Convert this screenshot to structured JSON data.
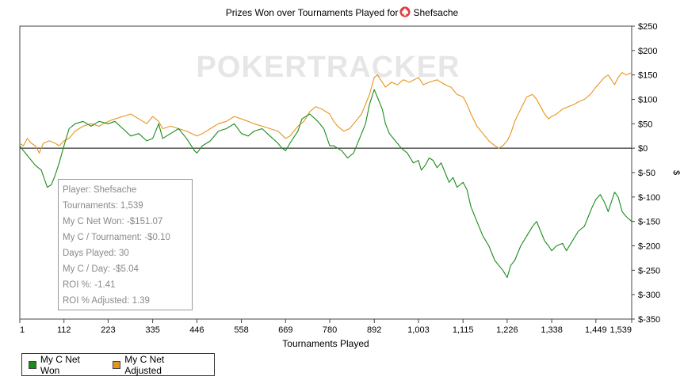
{
  "chart_data": {
    "type": "line",
    "title_prefix": "Prizes Won over Tournaments Played for",
    "title_player": "Shefsache",
    "title_icon": "spade-icon",
    "watermark": "POKERTRACKER",
    "xlabel": "Tournaments Played",
    "ylabel": "$",
    "xlim": [
      1,
      1539
    ],
    "ylim": [
      -350,
      250
    ],
    "x_ticks": [
      1,
      112,
      223,
      335,
      446,
      558,
      669,
      780,
      892,
      1003,
      1115,
      1226,
      1338,
      1449,
      1539
    ],
    "x_tick_labels": [
      "1",
      "112",
      "223",
      "335",
      "446",
      "558",
      "669",
      "780",
      "892",
      "1,003",
      "1,115",
      "1,226",
      "1,338",
      "1,449",
      "1,539"
    ],
    "y_ticks": [
      250,
      200,
      150,
      100,
      50,
      0,
      -50,
      -100,
      -150,
      -200,
      -250,
      -300,
      -350
    ],
    "y_tick_labels": [
      "$250",
      "$200",
      "$150",
      "$100",
      "$50",
      "$0",
      "$-50",
      "$-100",
      "$-150",
      "$-200",
      "$-250",
      "$-300",
      "$-350"
    ],
    "legend_position": "bottom-left",
    "series": [
      {
        "name": "My C Net Won",
        "color": "#1a8c1a",
        "points": [
          [
            1,
            5
          ],
          [
            10,
            -5
          ],
          [
            25,
            -20
          ],
          [
            40,
            -35
          ],
          [
            55,
            -45
          ],
          [
            70,
            -80
          ],
          [
            80,
            -75
          ],
          [
            90,
            -55
          ],
          [
            100,
            -30
          ],
          [
            112,
            5
          ],
          [
            125,
            40
          ],
          [
            140,
            50
          ],
          [
            160,
            55
          ],
          [
            180,
            45
          ],
          [
            200,
            55
          ],
          [
            223,
            50
          ],
          [
            240,
            55
          ],
          [
            260,
            40
          ],
          [
            280,
            25
          ],
          [
            300,
            30
          ],
          [
            320,
            15
          ],
          [
            335,
            20
          ],
          [
            350,
            50
          ],
          [
            360,
            20
          ],
          [
            380,
            30
          ],
          [
            400,
            40
          ],
          [
            420,
            20
          ],
          [
            440,
            -5
          ],
          [
            446,
            -10
          ],
          [
            460,
            5
          ],
          [
            480,
            15
          ],
          [
            500,
            35
          ],
          [
            520,
            40
          ],
          [
            540,
            50
          ],
          [
            558,
            30
          ],
          [
            575,
            25
          ],
          [
            590,
            35
          ],
          [
            610,
            40
          ],
          [
            630,
            25
          ],
          [
            650,
            10
          ],
          [
            660,
            0
          ],
          [
            669,
            -5
          ],
          [
            680,
            10
          ],
          [
            700,
            35
          ],
          [
            710,
            60
          ],
          [
            730,
            70
          ],
          [
            750,
            55
          ],
          [
            765,
            40
          ],
          [
            780,
            5
          ],
          [
            790,
            5
          ],
          [
            800,
            0
          ],
          [
            810,
            -5
          ],
          [
            825,
            -20
          ],
          [
            840,
            -10
          ],
          [
            855,
            20
          ],
          [
            870,
            50
          ],
          [
            880,
            90
          ],
          [
            892,
            120
          ],
          [
            902,
            100
          ],
          [
            912,
            80
          ],
          [
            920,
            50
          ],
          [
            930,
            30
          ],
          [
            945,
            15
          ],
          [
            960,
            0
          ],
          [
            975,
            -10
          ],
          [
            990,
            -30
          ],
          [
            1003,
            -25
          ],
          [
            1010,
            -45
          ],
          [
            1020,
            -35
          ],
          [
            1030,
            -20
          ],
          [
            1040,
            -25
          ],
          [
            1050,
            -40
          ],
          [
            1060,
            -30
          ],
          [
            1070,
            -50
          ],
          [
            1080,
            -70
          ],
          [
            1090,
            -60
          ],
          [
            1100,
            -80
          ],
          [
            1115,
            -70
          ],
          [
            1125,
            -85
          ],
          [
            1135,
            -120
          ],
          [
            1150,
            -150
          ],
          [
            1165,
            -180
          ],
          [
            1180,
            -200
          ],
          [
            1195,
            -230
          ],
          [
            1205,
            -240
          ],
          [
            1215,
            -250
          ],
          [
            1226,
            -265
          ],
          [
            1235,
            -240
          ],
          [
            1245,
            -230
          ],
          [
            1260,
            -200
          ],
          [
            1275,
            -180
          ],
          [
            1290,
            -160
          ],
          [
            1300,
            -150
          ],
          [
            1310,
            -170
          ],
          [
            1320,
            -190
          ],
          [
            1330,
            -200
          ],
          [
            1338,
            -210
          ],
          [
            1350,
            -200
          ],
          [
            1365,
            -195
          ],
          [
            1375,
            -210
          ],
          [
            1390,
            -190
          ],
          [
            1405,
            -170
          ],
          [
            1420,
            -160
          ],
          [
            1430,
            -140
          ],
          [
            1440,
            -120
          ],
          [
            1449,
            -105
          ],
          [
            1460,
            -95
          ],
          [
            1470,
            -110
          ],
          [
            1480,
            -130
          ],
          [
            1488,
            -110
          ],
          [
            1496,
            -90
          ],
          [
            1505,
            -100
          ],
          [
            1515,
            -130
          ],
          [
            1525,
            -140
          ],
          [
            1539,
            -150
          ]
        ]
      },
      {
        "name": "My C Net Adjusted",
        "color": "#e8941e",
        "points": [
          [
            1,
            10
          ],
          [
            10,
            5
          ],
          [
            20,
            20
          ],
          [
            30,
            10
          ],
          [
            40,
            5
          ],
          [
            50,
            -10
          ],
          [
            60,
            10
          ],
          [
            75,
            15
          ],
          [
            90,
            10
          ],
          [
            100,
            5
          ],
          [
            112,
            15
          ],
          [
            125,
            20
          ],
          [
            140,
            35
          ],
          [
            160,
            45
          ],
          [
            180,
            50
          ],
          [
            200,
            45
          ],
          [
            223,
            55
          ],
          [
            240,
            60
          ],
          [
            260,
            65
          ],
          [
            280,
            70
          ],
          [
            300,
            60
          ],
          [
            320,
            50
          ],
          [
            335,
            65
          ],
          [
            350,
            55
          ],
          [
            360,
            40
          ],
          [
            380,
            45
          ],
          [
            400,
            40
          ],
          [
            420,
            35
          ],
          [
            446,
            25
          ],
          [
            460,
            30
          ],
          [
            480,
            40
          ],
          [
            500,
            50
          ],
          [
            520,
            55
          ],
          [
            540,
            65
          ],
          [
            558,
            60
          ],
          [
            575,
            55
          ],
          [
            590,
            50
          ],
          [
            610,
            45
          ],
          [
            630,
            40
          ],
          [
            650,
            35
          ],
          [
            669,
            20
          ],
          [
            680,
            25
          ],
          [
            700,
            45
          ],
          [
            715,
            55
          ],
          [
            730,
            75
          ],
          [
            745,
            85
          ],
          [
            760,
            80
          ],
          [
            780,
            70
          ],
          [
            790,
            55
          ],
          [
            800,
            45
          ],
          [
            815,
            35
          ],
          [
            830,
            40
          ],
          [
            845,
            55
          ],
          [
            860,
            70
          ],
          [
            870,
            90
          ],
          [
            880,
            110
          ],
          [
            892,
            145
          ],
          [
            900,
            150
          ],
          [
            912,
            135
          ],
          [
            920,
            125
          ],
          [
            935,
            135
          ],
          [
            950,
            130
          ],
          [
            965,
            140
          ],
          [
            980,
            135
          ],
          [
            1003,
            145
          ],
          [
            1015,
            130
          ],
          [
            1030,
            135
          ],
          [
            1050,
            140
          ],
          [
            1070,
            130
          ],
          [
            1085,
            125
          ],
          [
            1100,
            110
          ],
          [
            1115,
            105
          ],
          [
            1125,
            90
          ],
          [
            1135,
            70
          ],
          [
            1150,
            45
          ],
          [
            1165,
            30
          ],
          [
            1180,
            15
          ],
          [
            1195,
            5
          ],
          [
            1205,
            0
          ],
          [
            1215,
            5
          ],
          [
            1226,
            15
          ],
          [
            1235,
            30
          ],
          [
            1245,
            55
          ],
          [
            1260,
            80
          ],
          [
            1275,
            105
          ],
          [
            1290,
            110
          ],
          [
            1300,
            100
          ],
          [
            1310,
            85
          ],
          [
            1320,
            70
          ],
          [
            1330,
            60
          ],
          [
            1338,
            65
          ],
          [
            1350,
            70
          ],
          [
            1365,
            80
          ],
          [
            1380,
            85
          ],
          [
            1395,
            90
          ],
          [
            1405,
            95
          ],
          [
            1420,
            100
          ],
          [
            1435,
            110
          ],
          [
            1449,
            125
          ],
          [
            1460,
            135
          ],
          [
            1470,
            145
          ],
          [
            1480,
            150
          ],
          [
            1488,
            140
          ],
          [
            1496,
            130
          ],
          [
            1505,
            145
          ],
          [
            1515,
            155
          ],
          [
            1525,
            150
          ],
          [
            1539,
            155
          ]
        ]
      }
    ]
  },
  "stats": {
    "player": "Player: Shefsache",
    "tournaments": "Tournaments: 1,539",
    "net_won": "My C Net Won: -$151.07",
    "per_tournament": "My C / Tournament: -$0.10",
    "days_played": "Days Played: 30",
    "per_day": "My C / Day: -$5.04",
    "roi": "ROI %: -1.41",
    "roi_adjusted": "ROI % Adjusted: 1.39"
  }
}
